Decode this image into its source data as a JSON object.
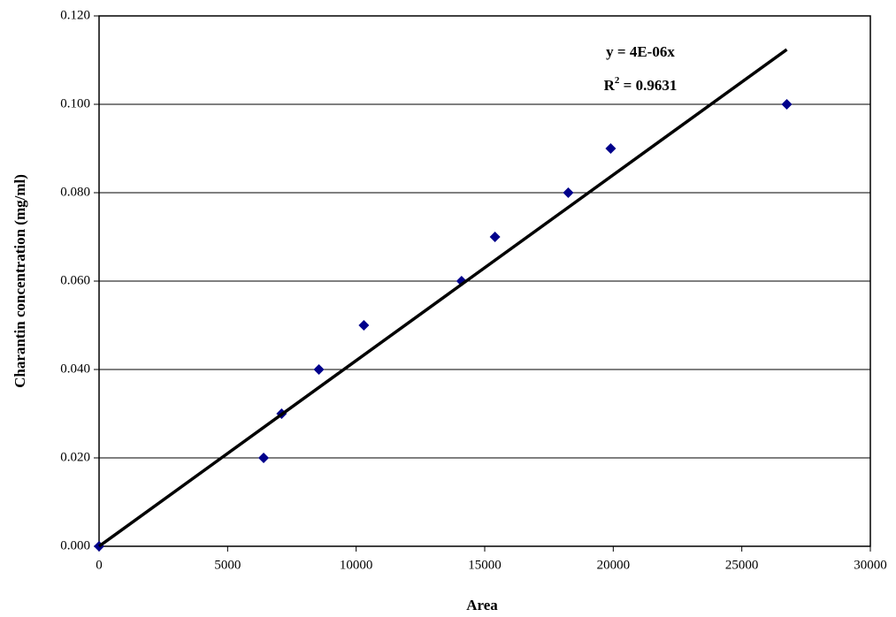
{
  "chart_data": {
    "type": "scatter",
    "x_label": "Area",
    "y_label": "Charantin concentration (mg/ml)",
    "series": [
      {
        "color": "#00008b",
        "marker": "diamond",
        "x": [
          0,
          6400,
          7100,
          8550,
          10300,
          14100,
          15400,
          18250,
          19900,
          26750
        ],
        "values": [
          0,
          0.02,
          0.03,
          0.04,
          0.05,
          0.06,
          0.07,
          0.08,
          0.09,
          0.1
        ]
      },
      {
        "color": "#000000",
        "style": "line",
        "x": [
          0,
          26750
        ],
        "values": [
          0,
          0.1124
        ]
      }
    ],
    "equation": "y = 4E-06x",
    "r_squared": {
      "base": "R",
      "sup": "2",
      "rest": " = 0.9631"
    },
    "xlim": [
      0,
      30000
    ],
    "xticks": [
      0,
      5000,
      10000,
      15000,
      20000,
      25000,
      30000
    ],
    "ylim": [
      0,
      0.12
    ],
    "yticks": [
      {
        "value": 0,
        "label": "0.000"
      },
      {
        "value": 0.02,
        "label": "0.020"
      },
      {
        "value": 0.04,
        "label": "0.040"
      },
      {
        "value": 0.06,
        "label": "0.060"
      },
      {
        "value": 0.08,
        "label": "0.080"
      },
      {
        "value": 0.1,
        "label": "0.100"
      },
      {
        "value": 0.12,
        "label": "0.120"
      }
    ],
    "grid": true
  }
}
